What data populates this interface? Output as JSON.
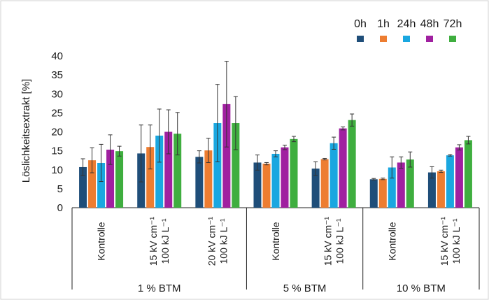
{
  "chart_data": {
    "type": "bar",
    "ylabel": "Löslichkeitsextrakt [%]",
    "ylim": [
      0,
      40
    ],
    "yticks": [
      0,
      5,
      10,
      15,
      20,
      25,
      30,
      35,
      40
    ],
    "grid": false,
    "legend_position": "top-right",
    "groups": [
      {
        "label": "1 % BTM",
        "subgroups": [
          {
            "label_lines": [
              "Kontrolle"
            ]
          },
          {
            "label_lines": [
              "15 kV cm⁻¹",
              "100 kJ L⁻¹"
            ]
          },
          {
            "label_lines": [
              "20 kV cm⁻¹",
              "100 kJ L⁻¹"
            ]
          }
        ]
      },
      {
        "label": "5 % BTM",
        "subgroups": [
          {
            "label_lines": [
              "Kontrolle"
            ]
          },
          {
            "label_lines": [
              "15 kV cm⁻¹",
              "100 kJ L⁻¹"
            ]
          }
        ]
      },
      {
        "label": "10 % BTM",
        "subgroups": [
          {
            "label_lines": [
              "Kontrolle"
            ]
          },
          {
            "label_lines": [
              "15 kV cm⁻¹",
              "100 kJ L⁻¹"
            ]
          }
        ]
      }
    ],
    "series": [
      {
        "name": "0h",
        "color": "#1f4e79",
        "values": [
          10.7,
          14.3,
          13.4,
          11.9,
          10.3,
          7.5,
          9.3
        ],
        "errors": [
          2.2,
          7.5,
          1.6,
          2.0,
          1.8,
          0.2,
          1.5
        ]
      },
      {
        "name": "1h",
        "color": "#ed7d31",
        "values": [
          12.5,
          16.0,
          15.1,
          11.6,
          12.8,
          7.6,
          9.6
        ],
        "errors": [
          3.3,
          5.8,
          3.2,
          0.3,
          0.2,
          0.2,
          0.3
        ]
      },
      {
        "name": "24h",
        "color": "#1aa7e0",
        "values": [
          11.8,
          19.0,
          22.3,
          14.2,
          17.0,
          10.6,
          13.8
        ],
        "errors": [
          4.9,
          7.0,
          10.2,
          0.8,
          1.6,
          2.8,
          0.2
        ]
      },
      {
        "name": "48h",
        "color": "#a020a0",
        "values": [
          15.3,
          20.0,
          27.3,
          15.9,
          20.9,
          11.9,
          15.9
        ],
        "errors": [
          3.9,
          5.8,
          11.3,
          0.6,
          0.4,
          1.5,
          0.7
        ]
      },
      {
        "name": "72h",
        "color": "#3fae3f",
        "values": [
          14.9,
          19.5,
          22.3,
          18.1,
          23.1,
          12.7,
          17.8
        ],
        "errors": [
          1.3,
          5.6,
          7.0,
          0.7,
          1.6,
          2.0,
          1.0
        ]
      }
    ]
  }
}
